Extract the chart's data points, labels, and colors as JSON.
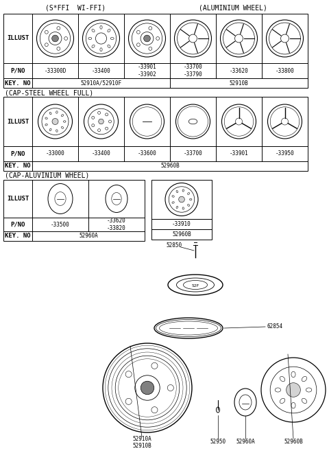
{
  "bg_color": "#ffffff",
  "border_color": "#000000",
  "title_section1_left": "(S*FFI  WI-FFI)",
  "title_section1_right": "(ALUMINIUM WHEEL)",
  "title_section2": "(CAP-STEEL WHEEL FULL)",
  "title_section3": "(CAP-ALUVINIUM WHEEL)",
  "section1_parts": [
    "-33300D",
    "-33400",
    "-33901\n-33902",
    "-33700\n-33790",
    "-33620",
    "-33800"
  ],
  "section1_key_left": "52910A/52910F",
  "section1_key_right": "52910B",
  "section2_parts": [
    "-33000",
    "-33400",
    "-33600",
    "-33700",
    "-33901",
    "-33950"
  ],
  "section2_key": "52960B",
  "section3_pno1": "-33500",
  "section3_pno2": "-33620\n-33820",
  "section3_key": "52960A",
  "section3_pno_right": "-33910",
  "section3_key_right": "52960B",
  "font_size_title": 7.0,
  "font_size_label": 6.5,
  "font_size_part": 5.5,
  "font_family": "monospace"
}
